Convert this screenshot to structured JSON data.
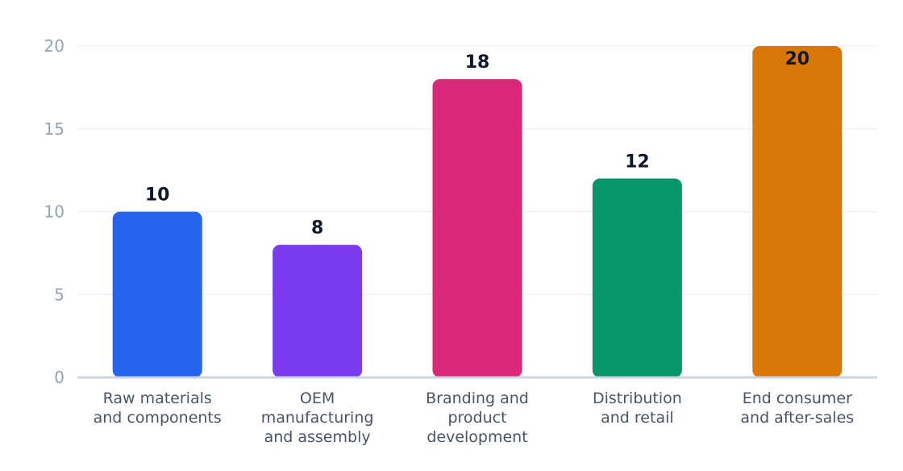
{
  "chart_data": {
    "type": "bar",
    "categories": [
      [
        "Raw materials",
        "and components"
      ],
      [
        "OEM",
        "manufacturing",
        "and assembly"
      ],
      [
        "Branding and",
        "product",
        "development"
      ],
      [
        "Distribution",
        "and retail"
      ],
      [
        "End consumer",
        "and after-sales"
      ]
    ],
    "values": [
      10,
      8,
      18,
      12,
      20
    ],
    "colors": [
      "#2563eb",
      "#7c3aed",
      "#db2777",
      "#059669",
      "#d97706"
    ],
    "yticks": [
      0,
      5,
      10,
      15,
      20
    ],
    "ylim": [
      0,
      20
    ],
    "grid": true,
    "title": "",
    "xlabel": "",
    "ylabel": ""
  }
}
